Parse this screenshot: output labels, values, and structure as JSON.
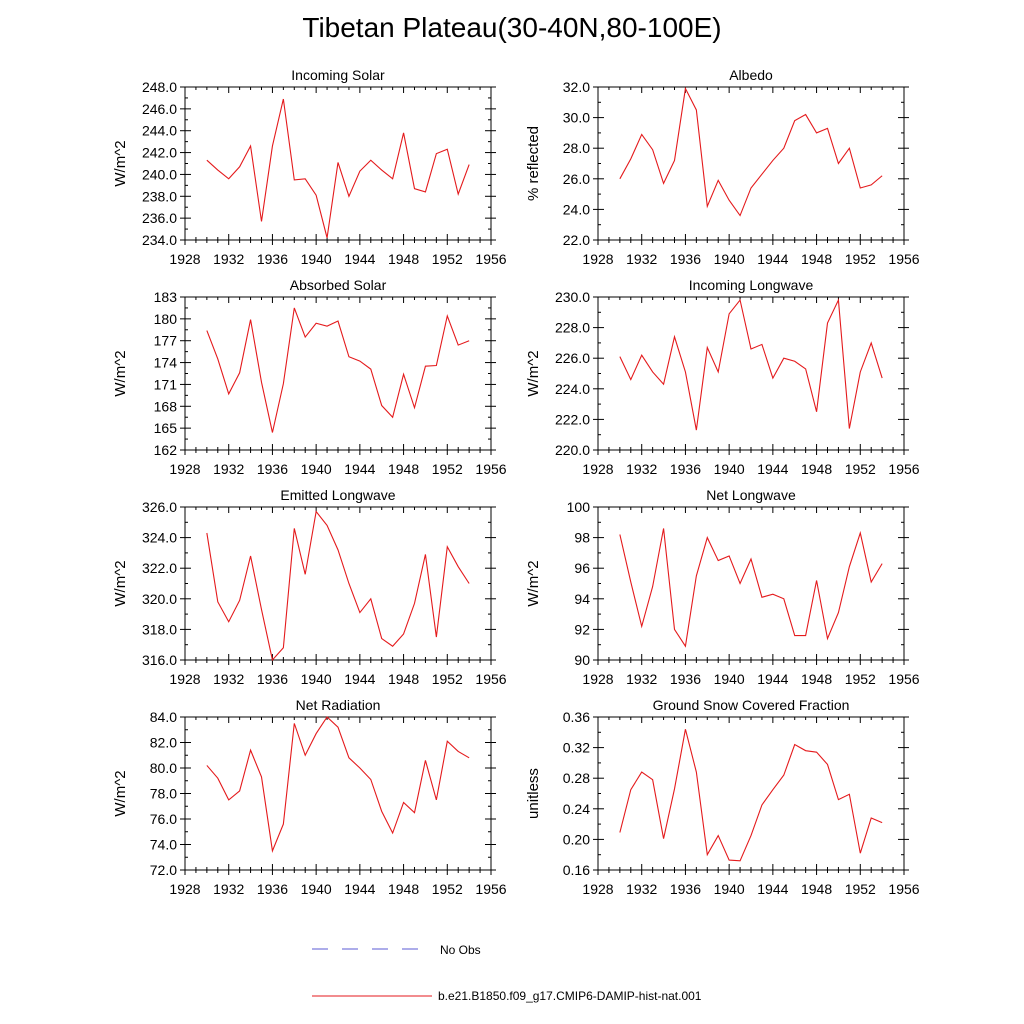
{
  "figure": {
    "title": "Tibetan Plateau(30-40N,80-100E)",
    "line_color": "#e41a1c",
    "obs_color": "#5b5bd6",
    "legend": [
      {
        "label": "No Obs",
        "style": "dashed",
        "color": "#5b5bd6"
      },
      {
        "label": "b.e21.B1850.f09_g17.CMIP6-DAMIP-hist-nat.001",
        "style": "solid",
        "color": "#e41a1c"
      }
    ]
  },
  "chart_data": [
    {
      "type": "line",
      "title": "Incoming Solar",
      "ylabel": "W/m^2",
      "xlim": [
        1928,
        1956
      ],
      "ylim": [
        234,
        248
      ],
      "xticks": [
        1928,
        1932,
        1936,
        1940,
        1944,
        1948,
        1952,
        1956
      ],
      "yticks": [
        234,
        236,
        238,
        240,
        242,
        244,
        246,
        248
      ],
      "ytick_labels": [
        "234.0",
        "236.0",
        "238.0",
        "240.0",
        "242.0",
        "244.0",
        "246.0",
        "248.0"
      ],
      "x": [
        1930,
        1931,
        1932,
        1933,
        1934,
        1935,
        1936,
        1937,
        1938,
        1939,
        1940,
        1941,
        1942,
        1943,
        1944,
        1945,
        1946,
        1947,
        1948,
        1949,
        1950,
        1951,
        1952,
        1953,
        1954
      ],
      "series": [
        {
          "values": [
            241.3,
            240.4,
            239.6,
            240.7,
            242.6,
            235.7,
            242.6,
            246.9,
            239.5,
            239.6,
            238.1,
            234.2,
            241.1,
            238.0,
            240.3,
            241.3,
            240.4,
            239.6,
            243.8,
            238.7,
            238.4,
            241.9,
            242.3,
            238.2,
            240.9
          ]
        }
      ]
    },
    {
      "type": "line",
      "title": "Albedo",
      "ylabel": "% reflected",
      "xlim": [
        1928,
        1956
      ],
      "ylim": [
        22,
        32
      ],
      "xticks": [
        1928,
        1932,
        1936,
        1940,
        1944,
        1948,
        1952,
        1956
      ],
      "yticks": [
        22,
        24,
        26,
        28,
        30,
        32
      ],
      "ytick_labels": [
        "22.0",
        "24.0",
        "26.0",
        "28.0",
        "30.0",
        "32.0"
      ],
      "x": [
        1930,
        1931,
        1932,
        1933,
        1934,
        1935,
        1936,
        1937,
        1938,
        1939,
        1940,
        1941,
        1942,
        1943,
        1944,
        1945,
        1946,
        1947,
        1948,
        1949,
        1950,
        1951,
        1952,
        1953,
        1954
      ],
      "series": [
        {
          "values": [
            26.0,
            27.3,
            28.9,
            27.9,
            25.7,
            27.2,
            31.9,
            30.5,
            24.2,
            25.9,
            24.6,
            23.6,
            25.4,
            26.3,
            27.2,
            28.0,
            29.8,
            30.2,
            29.0,
            29.3,
            27.0,
            28.0,
            25.4,
            25.6,
            26.2
          ]
        }
      ]
    },
    {
      "type": "line",
      "title": "Absorbed Solar",
      "ylabel": "W/m^2",
      "xlim": [
        1928,
        1956
      ],
      "ylim": [
        162,
        183
      ],
      "xticks": [
        1928,
        1932,
        1936,
        1940,
        1944,
        1948,
        1952,
        1956
      ],
      "yticks": [
        162,
        165,
        168,
        171,
        174,
        177,
        180,
        183
      ],
      "ytick_labels": [
        "162",
        "165",
        "168",
        "171",
        "174",
        "177",
        "180",
        "183"
      ],
      "x": [
        1930,
        1931,
        1932,
        1933,
        1934,
        1935,
        1936,
        1937,
        1938,
        1939,
        1940,
        1941,
        1942,
        1943,
        1944,
        1945,
        1946,
        1947,
        1948,
        1949,
        1950,
        1951,
        1952,
        1953,
        1954
      ],
      "series": [
        {
          "values": [
            178.4,
            174.5,
            169.7,
            172.6,
            179.9,
            171.3,
            164.4,
            171.1,
            181.5,
            177.5,
            179.4,
            179.0,
            179.7,
            174.8,
            174.2,
            173.1,
            168.1,
            166.5,
            172.4,
            167.8,
            173.5,
            173.6,
            180.4,
            176.4,
            177.0
          ]
        }
      ]
    },
    {
      "type": "line",
      "title": "Incoming Longwave",
      "ylabel": "W/m^2",
      "xlim": [
        1928,
        1956
      ],
      "ylim": [
        220,
        230
      ],
      "xticks": [
        1928,
        1932,
        1936,
        1940,
        1944,
        1948,
        1952,
        1956
      ],
      "yticks": [
        220,
        222,
        224,
        226,
        228,
        230
      ],
      "ytick_labels": [
        "220.0",
        "222.0",
        "224.0",
        "226.0",
        "228.0",
        "230.0"
      ],
      "x": [
        1930,
        1931,
        1932,
        1933,
        1934,
        1935,
        1936,
        1937,
        1938,
        1939,
        1940,
        1941,
        1942,
        1943,
        1944,
        1945,
        1946,
        1947,
        1948,
        1949,
        1950,
        1951,
        1952,
        1953,
        1954
      ],
      "series": [
        {
          "values": [
            226.1,
            224.6,
            226.2,
            225.1,
            224.3,
            227.4,
            225.1,
            221.3,
            226.7,
            225.1,
            228.9,
            229.8,
            226.6,
            226.9,
            224.7,
            226.0,
            225.8,
            225.3,
            222.5,
            228.3,
            229.8,
            221.4,
            225.1,
            227.0,
            224.7
          ]
        }
      ]
    },
    {
      "type": "line",
      "title": "Emitted Longwave",
      "ylabel": "W/m^2",
      "xlim": [
        1928,
        1956
      ],
      "ylim": [
        316,
        326
      ],
      "xticks": [
        1928,
        1932,
        1936,
        1940,
        1944,
        1948,
        1952,
        1956
      ],
      "yticks": [
        316,
        318,
        320,
        322,
        324,
        326
      ],
      "ytick_labels": [
        "316.0",
        "318.0",
        "320.0",
        "322.0",
        "324.0",
        "326.0"
      ],
      "x": [
        1930,
        1931,
        1932,
        1933,
        1934,
        1935,
        1936,
        1937,
        1938,
        1939,
        1940,
        1941,
        1942,
        1943,
        1944,
        1945,
        1946,
        1947,
        1948,
        1949,
        1950,
        1951,
        1952,
        1953,
        1954
      ],
      "series": [
        {
          "values": [
            324.3,
            319.8,
            318.5,
            319.9,
            322.8,
            319.3,
            316.0,
            316.8,
            324.6,
            321.6,
            325.7,
            324.8,
            323.2,
            321.0,
            319.1,
            320.0,
            317.4,
            316.9,
            317.7,
            319.7,
            322.9,
            317.5,
            323.4,
            322.1,
            321.0
          ]
        }
      ]
    },
    {
      "type": "line",
      "title": "Net Longwave",
      "ylabel": "W/m^2",
      "xlim": [
        1928,
        1956
      ],
      "ylim": [
        90,
        100
      ],
      "xticks": [
        1928,
        1932,
        1936,
        1940,
        1944,
        1948,
        1952,
        1956
      ],
      "yticks": [
        90,
        92,
        94,
        96,
        98,
        100
      ],
      "ytick_labels": [
        "90",
        "92",
        "94",
        "96",
        "98",
        "100"
      ],
      "x": [
        1930,
        1931,
        1932,
        1933,
        1934,
        1935,
        1936,
        1937,
        1938,
        1939,
        1940,
        1941,
        1942,
        1943,
        1944,
        1945,
        1946,
        1947,
        1948,
        1949,
        1950,
        1951,
        1952,
        1953,
        1954
      ],
      "series": [
        {
          "values": [
            98.2,
            95.1,
            92.2,
            94.8,
            98.6,
            92.0,
            90.9,
            95.5,
            98.0,
            96.5,
            96.8,
            95.0,
            96.6,
            94.1,
            94.3,
            94.0,
            91.6,
            91.6,
            95.2,
            91.4,
            93.1,
            96.1,
            98.3,
            95.1,
            96.3
          ]
        }
      ]
    },
    {
      "type": "line",
      "title": "Net Radiation",
      "ylabel": "W/m^2",
      "xlim": [
        1928,
        1956
      ],
      "ylim": [
        72,
        84
      ],
      "xticks": [
        1928,
        1932,
        1936,
        1940,
        1944,
        1948,
        1952,
        1956
      ],
      "yticks": [
        72,
        74,
        76,
        78,
        80,
        82,
        84
      ],
      "ytick_labels": [
        "72.0",
        "74.0",
        "76.0",
        "78.0",
        "80.0",
        "82.0",
        "84.0"
      ],
      "x": [
        1930,
        1931,
        1932,
        1933,
        1934,
        1935,
        1936,
        1937,
        1938,
        1939,
        1940,
        1941,
        1942,
        1943,
        1944,
        1945,
        1946,
        1947,
        1948,
        1949,
        1950,
        1951,
        1952,
        1953,
        1954
      ],
      "series": [
        {
          "values": [
            80.2,
            79.2,
            77.5,
            78.2,
            81.4,
            79.3,
            73.5,
            75.6,
            83.5,
            81.0,
            82.7,
            84.0,
            83.2,
            80.8,
            80.0,
            79.1,
            76.6,
            74.9,
            77.3,
            76.5,
            80.6,
            77.5,
            82.1,
            81.3,
            80.8
          ]
        }
      ]
    },
    {
      "type": "line",
      "title": "Ground Snow Covered Fraction",
      "ylabel": "unitless",
      "xlim": [
        1928,
        1956
      ],
      "ylim": [
        0.16,
        0.36
      ],
      "xticks": [
        1928,
        1932,
        1936,
        1940,
        1944,
        1948,
        1952,
        1956
      ],
      "yticks": [
        0.16,
        0.2,
        0.24,
        0.28,
        0.32,
        0.36
      ],
      "ytick_labels": [
        "0.16",
        "0.20",
        "0.24",
        "0.28",
        "0.32",
        "0.36"
      ],
      "x": [
        1930,
        1931,
        1932,
        1933,
        1934,
        1935,
        1936,
        1937,
        1938,
        1939,
        1940,
        1941,
        1942,
        1943,
        1944,
        1945,
        1946,
        1947,
        1948,
        1949,
        1950,
        1951,
        1952,
        1953,
        1954
      ],
      "series": [
        {
          "values": [
            0.209,
            0.265,
            0.288,
            0.278,
            0.201,
            0.266,
            0.344,
            0.288,
            0.18,
            0.205,
            0.173,
            0.172,
            0.205,
            0.245,
            0.265,
            0.284,
            0.324,
            0.316,
            0.314,
            0.298,
            0.252,
            0.259,
            0.182,
            0.228,
            0.222
          ]
        }
      ]
    }
  ]
}
